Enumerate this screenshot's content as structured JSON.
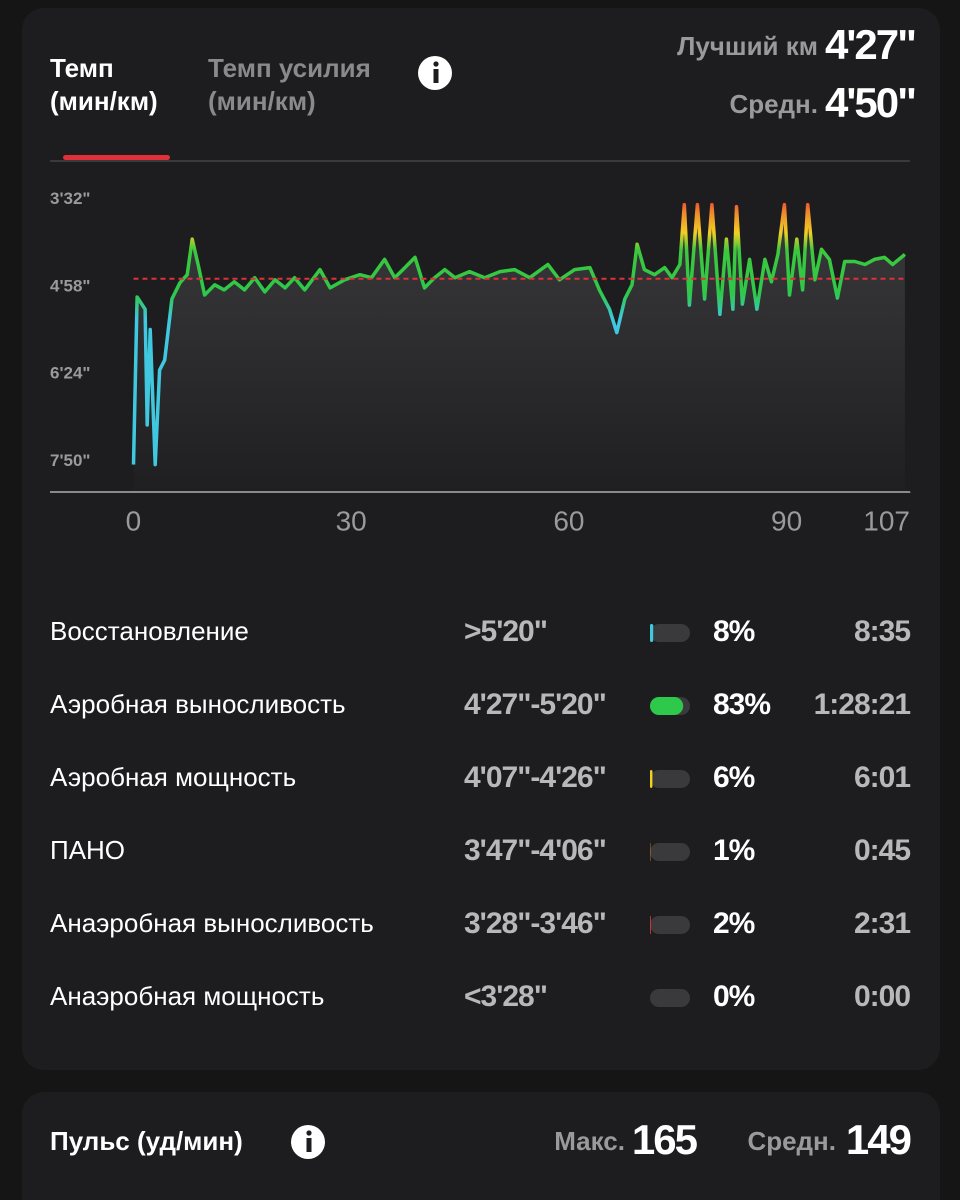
{
  "tabs": [
    {
      "label": "Темп",
      "unit": "(мин/км)"
    },
    {
      "label": "Темп усилия",
      "unit": "(мин/км)"
    }
  ],
  "summary": [
    {
      "label": "Лучший км",
      "value": "4'27\""
    },
    {
      "label": "Средн.",
      "value": "4'50\""
    }
  ],
  "chart_data": {
    "type": "line",
    "x": [
      0,
      0.5,
      1.6,
      1.9,
      2.3,
      3.0,
      3.6,
      4.3,
      5.3,
      6.4,
      7.4,
      8.1,
      8.9,
      9.8,
      11.2,
      12.5,
      13.9,
      15.3,
      16.7,
      18.1,
      19.5,
      20.9,
      22.2,
      23.6,
      25.7,
      27.1,
      29.1,
      31.2,
      32.8,
      34.6,
      36.0,
      37.4,
      38.8,
      40.1,
      41.5,
      42.9,
      44.3,
      46.3,
      48.4,
      50.5,
      52.5,
      54.6,
      57.1,
      58.7,
      60.8,
      62.9,
      64.2,
      65.6,
      66.6,
      67.7,
      68.7,
      69.4,
      70.4,
      71.8,
      73.2,
      74.2,
      75.3,
      75.9,
      76.6,
      77.7,
      78.7,
      79.7,
      80.8,
      81.7,
      82.6,
      83.1,
      83.9,
      84.9,
      85.9,
      87.0,
      87.9,
      88.8,
      89.7,
      90.4,
      91.4,
      92.2,
      92.9,
      93.9,
      94.8,
      95.9,
      97.0,
      98.0,
      99.4,
      100.8,
      102.1,
      103.5,
      104.6,
      106.3
    ],
    "values": [
      473,
      308,
      320,
      434,
      340,
      473,
      380,
      370,
      310,
      294,
      286,
      251,
      276,
      306,
      296,
      301,
      293,
      301,
      289,
      303,
      291,
      299,
      289,
      301,
      281,
      299,
      291,
      286,
      289,
      271,
      289,
      279,
      269,
      299,
      289,
      281,
      289,
      283,
      289,
      283,
      281,
      289,
      276,
      291,
      281,
      279,
      301,
      320,
      343,
      310,
      296,
      256,
      281,
      286,
      279,
      289,
      276,
      217,
      316,
      217,
      310,
      217,
      325,
      251,
      320,
      219,
      315,
      271,
      320,
      271,
      293,
      266,
      217,
      306,
      251,
      301,
      217,
      291,
      261,
      271,
      309,
      273,
      273,
      276,
      271,
      269,
      276,
      266
    ],
    "xlim": [
      -11.5,
      107
    ],
    "xticks": [
      0,
      30,
      60,
      90,
      107
    ],
    "ylim": [
      500,
      178
    ],
    "yticks": [
      {
        "value": 212,
        "label": "3'32\""
      },
      {
        "value": 298,
        "label": "4'58\""
      },
      {
        "value": 384,
        "label": "6'24\""
      },
      {
        "value": 470,
        "label": "7'50\""
      }
    ],
    "average": 290,
    "average_color": "#e0303a",
    "line_gradient": [
      {
        "value": 330,
        "color": "#3fc8e0"
      },
      {
        "value": 305,
        "color": "#2ec84a"
      },
      {
        "value": 262,
        "color": "#3cc83c"
      },
      {
        "value": 245,
        "color": "#f2d024"
      },
      {
        "value": 225,
        "color": "#f08a2a"
      },
      {
        "value": 210,
        "color": "#e8383a"
      }
    ]
  },
  "zones": [
    {
      "name": "Восстановление",
      "range": ">5'20\"",
      "value": 8,
      "value_label": "8%",
      "time": "8:35",
      "color": "#3fc8e0"
    },
    {
      "name": "Аэробная выносливость",
      "range": "4'27\"-5'20\"",
      "value": 83,
      "value_label": "83%",
      "time": "1:28:21",
      "color": "#2ec84a"
    },
    {
      "name": "Аэробная мощность",
      "range": "4'07\"-4'26\"",
      "value": 6,
      "value_label": "6%",
      "time": "6:01",
      "color": "#f2d024"
    },
    {
      "name": "ПАНО",
      "range": "3'47\"-4'06\"",
      "value": 1,
      "value_label": "1%",
      "time": "0:45",
      "color": "#f08a2a"
    },
    {
      "name": "Анаэробная выносливость",
      "range": "3'28\"-3'46\"",
      "value": 2,
      "value_label": "2%",
      "time": "2:31",
      "color": "#e8383a"
    },
    {
      "name": "Анаэробная мощность",
      "range": "<3'28\"",
      "value": 0,
      "value_label": "0%",
      "time": "0:00",
      "color": "#c02030"
    }
  ],
  "heart_rate": {
    "title": "Пульс (уд/мин)",
    "max_label": "Макс.",
    "max": 165,
    "avg_label": "Средн.",
    "avg": 149
  }
}
